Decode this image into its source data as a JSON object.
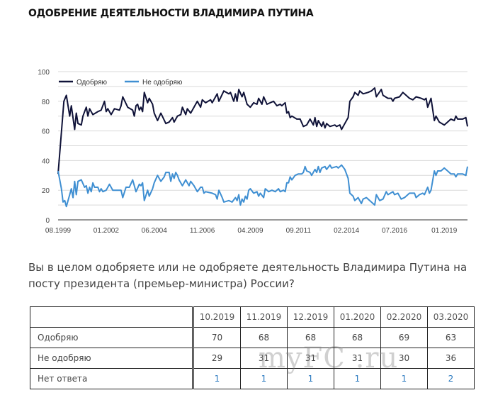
{
  "title": "ОДОБРЕНИЕ ДЕЯТЕЛЬНОСТИ ВЛАДИМИРА ПУТИНА",
  "chart_data": {
    "type": "line",
    "x_unit": "months since 08.1999",
    "xlim": [
      0,
      247
    ],
    "ylim": [
      0,
      100
    ],
    "yticks": [
      0,
      20,
      40,
      60,
      80,
      100
    ],
    "grid": true,
    "legend_position": "top-left",
    "xticks": [
      {
        "x": 0,
        "label": "08.1999"
      },
      {
        "x": 29,
        "label": "01.2002"
      },
      {
        "x": 58,
        "label": "06.2004"
      },
      {
        "x": 87,
        "label": "11.2006"
      },
      {
        "x": 116,
        "label": "04.2009"
      },
      {
        "x": 145,
        "label": "09.2011"
      },
      {
        "x": 174,
        "label": "02.2014"
      },
      {
        "x": 203,
        "label": "07.2016"
      },
      {
        "x": 233,
        "label": "01.2019"
      }
    ],
    "series": [
      {
        "name": "Одобряю",
        "color": "#0f1238",
        "x": [
          0,
          3.5,
          5,
          7,
          8,
          10,
          11,
          12,
          14,
          15,
          17,
          18,
          19,
          21,
          24,
          26,
          28,
          29,
          30,
          32,
          34,
          37,
          38,
          39,
          42,
          45,
          46,
          47,
          48,
          49,
          50,
          51,
          52,
          54,
          55,
          57,
          58,
          60,
          62,
          65,
          67,
          69,
          70,
          72,
          74,
          75,
          77,
          78,
          80,
          83,
          84,
          86,
          87,
          89,
          92,
          93,
          96,
          97,
          100,
          103,
          104,
          106,
          107,
          108,
          109,
          111,
          112,
          114,
          116,
          118,
          120,
          121,
          122,
          123,
          124,
          126,
          128,
          130,
          132,
          134,
          135,
          137,
          138,
          139,
          140,
          141,
          144,
          146,
          148,
          150,
          152,
          154,
          155,
          156,
          157,
          159,
          160,
          161,
          162,
          164,
          167,
          168,
          170,
          171,
          173,
          175,
          176,
          178,
          179,
          181,
          182,
          184,
          187,
          189,
          191,
          192,
          195,
          196,
          199,
          201,
          202,
          203,
          206,
          208,
          210,
          212,
          214,
          216,
          219,
          221,
          222,
          223,
          225,
          227,
          228,
          230,
          233,
          235,
          237,
          239,
          240,
          241,
          244,
          246,
          247
        ],
        "y": [
          31,
          80,
          84,
          70,
          77,
          61,
          72,
          65,
          64,
          70,
          76,
          70,
          75,
          71,
          73,
          74,
          80,
          73,
          75,
          71,
          75,
          74,
          77,
          83,
          76,
          74,
          70,
          77,
          78,
          74,
          76,
          73,
          86,
          79,
          82,
          78,
          72,
          67,
          72,
          65,
          66,
          69,
          66,
          70,
          71,
          76,
          71,
          75,
          72,
          78,
          80,
          76,
          81,
          79,
          81,
          79,
          85,
          80,
          87,
          85,
          86,
          80,
          85,
          80,
          88,
          83,
          86,
          78,
          76,
          79,
          78,
          82,
          80,
          78,
          83,
          78,
          79,
          80,
          77,
          78,
          77,
          79,
          72,
          73,
          69,
          70,
          68,
          68,
          63,
          64,
          68,
          64,
          69,
          63,
          67,
          63,
          66,
          62,
          65,
          63,
          64,
          63,
          64,
          61,
          65,
          69,
          80,
          83,
          86,
          84,
          87,
          85,
          86,
          87,
          89,
          83,
          88,
          84,
          82,
          82,
          80,
          82,
          83,
          86,
          84,
          82,
          81,
          83,
          82,
          81,
          82,
          76,
          82,
          67,
          70,
          66,
          64,
          66,
          68,
          67,
          70,
          68,
          68,
          69,
          63
        ]
      },
      {
        "name": "Не одобряю",
        "color": "#3f8fd2",
        "x": [
          0,
          2,
          3,
          4,
          5,
          7,
          8,
          9,
          10,
          11,
          12,
          14,
          16,
          17,
          18,
          19,
          20,
          21,
          22,
          24,
          25,
          26,
          27,
          29,
          31,
          33,
          38,
          39,
          41,
          43,
          45,
          47,
          49,
          50,
          51,
          52,
          54,
          55,
          57,
          58,
          60,
          62,
          64,
          65,
          67,
          68,
          69,
          70,
          71,
          72,
          73,
          75,
          77,
          79,
          80,
          82,
          84,
          86,
          87,
          88,
          89,
          93,
          95,
          96,
          97,
          99,
          100,
          103,
          105,
          107,
          108,
          109,
          110,
          111,
          112,
          113,
          114,
          115,
          116,
          118,
          120,
          121,
          122,
          124,
          125,
          127,
          129,
          131,
          133,
          134,
          136,
          137,
          138,
          139,
          140,
          141,
          143,
          145,
          147,
          148,
          149,
          150,
          152,
          153,
          155,
          156,
          157,
          158,
          159,
          161,
          162,
          164,
          165,
          168,
          169,
          171,
          173,
          175,
          176,
          178,
          179,
          181,
          183,
          184,
          186,
          188,
          189,
          191,
          192,
          194,
          196,
          198,
          199,
          202,
          203,
          205,
          207,
          209,
          212,
          215,
          216,
          218,
          220,
          221,
          223,
          224,
          225,
          227,
          228,
          229,
          231,
          233,
          235,
          237,
          239,
          240,
          241,
          244,
          246,
          247
        ],
        "y": [
          33,
          21,
          12,
          13,
          9,
          17,
          21,
          15,
          26,
          17,
          26,
          27,
          22,
          23,
          18,
          22,
          19,
          25,
          22,
          22,
          19,
          21,
          19,
          20,
          24,
          20,
          20,
          15,
          22,
          22,
          27,
          19,
          24,
          23,
          25,
          13,
          20,
          16,
          21,
          25,
          30,
          26,
          29,
          32,
          32,
          26,
          31,
          28,
          32,
          30,
          27,
          23,
          27,
          23,
          26,
          23,
          19,
          22,
          22,
          18,
          19,
          18,
          17,
          14,
          20,
          15,
          12,
          13,
          12,
          15,
          13,
          17,
          10,
          14,
          12,
          16,
          14,
          20,
          21,
          18,
          19,
          16,
          18,
          15,
          21,
          19,
          20,
          19,
          21,
          19,
          20,
          19,
          25,
          25,
          29,
          27,
          30,
          31,
          31,
          32,
          36,
          33,
          32,
          30,
          34,
          32,
          36,
          32,
          35,
          36,
          34,
          37,
          35,
          36,
          35,
          37,
          34,
          28,
          18,
          16,
          13,
          15,
          11,
          14,
          15,
          13,
          12,
          10,
          17,
          13,
          14,
          19,
          17,
          19,
          17,
          18,
          14,
          15,
          18,
          18,
          15,
          17,
          18,
          17,
          22,
          18,
          20,
          33,
          30,
          33,
          33,
          35,
          33,
          31,
          31,
          29,
          31,
          31,
          30,
          36
        ]
      }
    ]
  },
  "question": "Вы в целом одобряете или не одобряете деятельность Владимира Путина на посту президента (премьер-министра) России?",
  "table": {
    "columns": [
      "10.2019",
      "11.2019",
      "12.2019",
      "01.2020",
      "02.2020",
      "03.2020"
    ],
    "rows": [
      {
        "label": "Одобряю",
        "values": [
          "70",
          "68",
          "68",
          "68",
          "69",
          "63"
        ]
      },
      {
        "label": "Не одобряю",
        "values": [
          "29",
          "31",
          "31",
          "31",
          "30",
          "36"
        ]
      },
      {
        "label": "Нет ответа",
        "values": [
          "1",
          "1",
          "1",
          "1",
          "1",
          "2"
        ]
      }
    ]
  },
  "watermark": "myFC .ru"
}
